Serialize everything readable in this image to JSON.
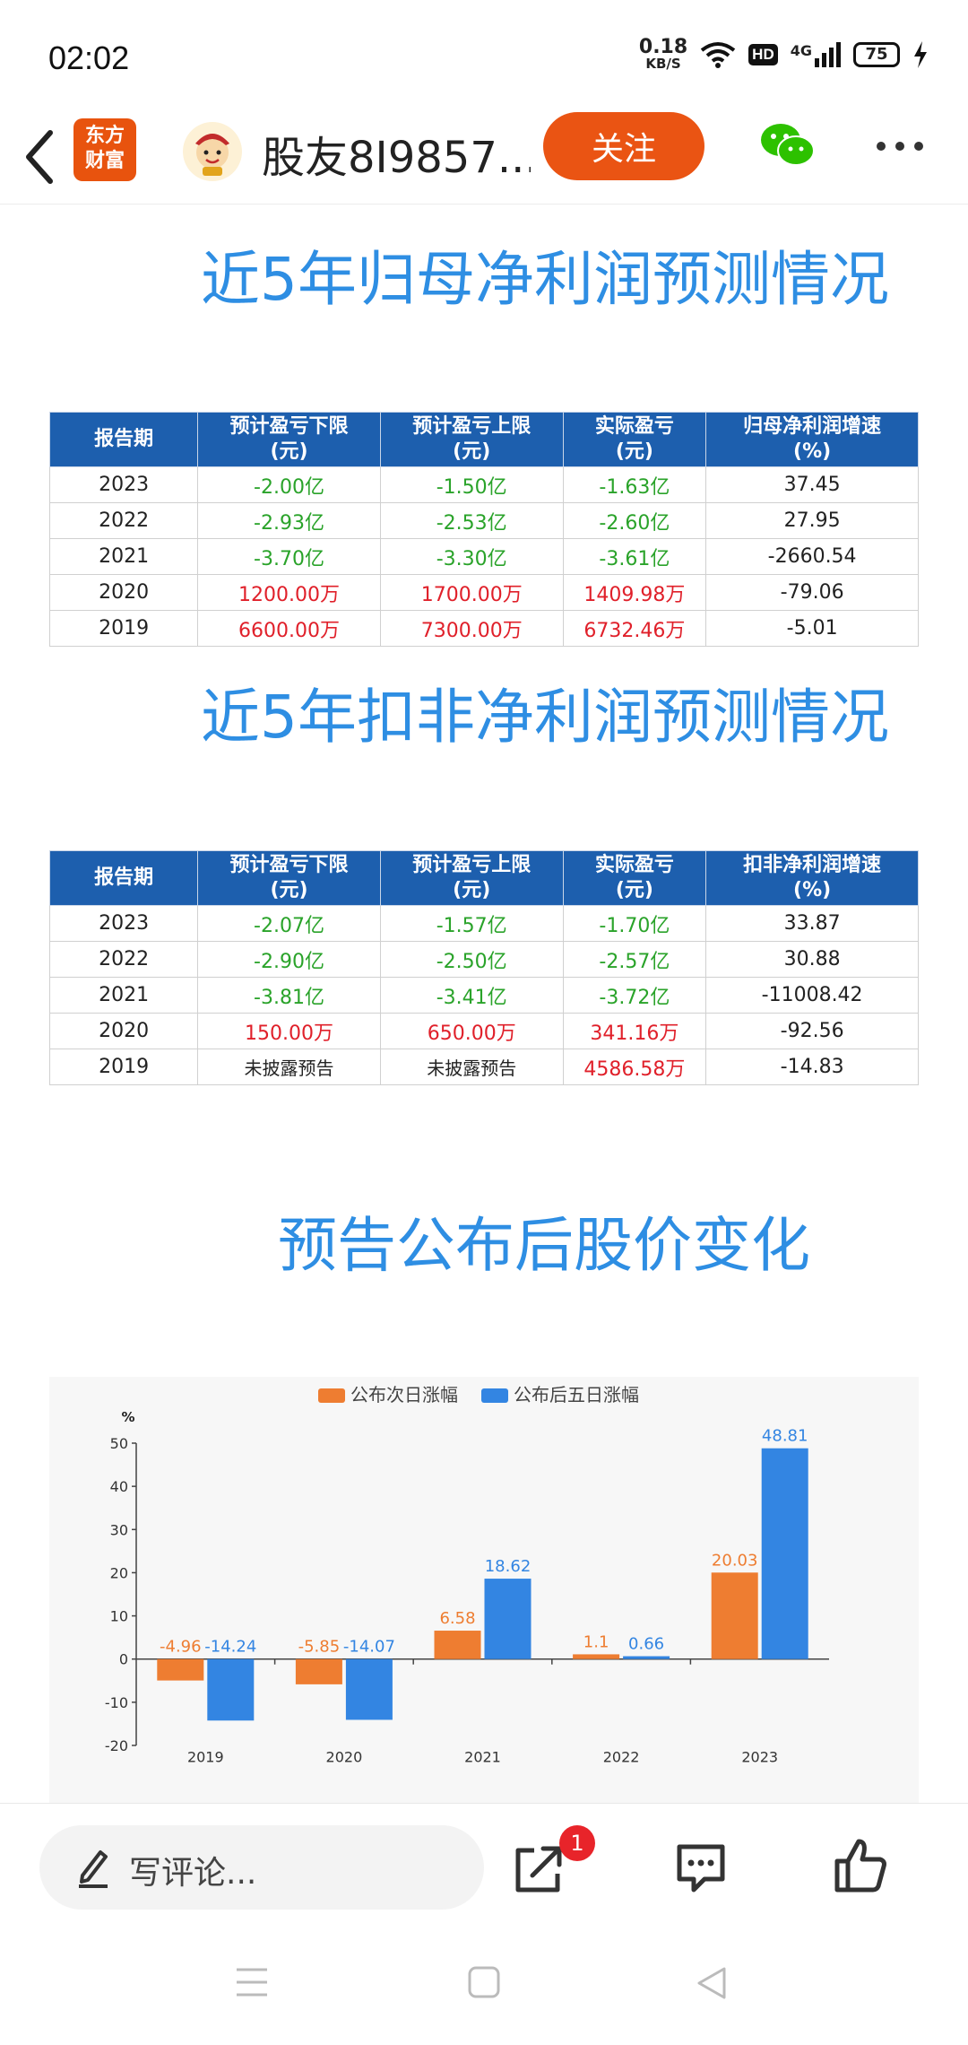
{
  "status_bar": {
    "time": "02:02",
    "net_speed": "0.18",
    "net_unit": "KB/S",
    "hd": "HD",
    "network": "4G",
    "battery": "75"
  },
  "nav": {
    "logo_line1": "东方",
    "logo_line2": "财富",
    "username": "股友8I9857...",
    "follow_label": "关注"
  },
  "section1": {
    "title": "近5年归母净利润预测情况",
    "headers": [
      "报告期",
      "预计盈亏下限\n(元)",
      "预计盈亏上限\n(元)",
      "实际盈亏\n(元)",
      "归母净利润增速\n(%)"
    ],
    "rows": [
      [
        "2023",
        "-2.00亿",
        "-1.50亿",
        "-1.63亿",
        "37.45"
      ],
      [
        "2022",
        "-2.93亿",
        "-2.53亿",
        "-2.60亿",
        "27.95"
      ],
      [
        "2021",
        "-3.70亿",
        "-3.30亿",
        "-3.61亿",
        "-2660.54"
      ],
      [
        "2020",
        "1200.00万",
        "1700.00万",
        "1409.98万",
        "-79.06"
      ],
      [
        "2019",
        "6600.00万",
        "7300.00万",
        "6732.46万",
        "-5.01"
      ]
    ]
  },
  "section2": {
    "title": "近5年扣非净利润预测情况",
    "headers": [
      "报告期",
      "预计盈亏下限\n(元)",
      "预计盈亏上限\n(元)",
      "实际盈亏\n(元)",
      "扣非净利润增速\n(%)"
    ],
    "rows": [
      [
        "2023",
        "-2.07亿",
        "-1.57亿",
        "-1.70亿",
        "33.87"
      ],
      [
        "2022",
        "-2.90亿",
        "-2.50亿",
        "-2.57亿",
        "30.88"
      ],
      [
        "2021",
        "-3.81亿",
        "-3.41亿",
        "-3.72亿",
        "-11008.42"
      ],
      [
        "2020",
        "150.00万",
        "650.00万",
        "341.16万",
        "-92.56"
      ],
      [
        "2019",
        "未披露预告",
        "未披露预告",
        "4586.58万",
        "-14.83"
      ]
    ]
  },
  "section3": {
    "title": "预告公布后股价变化"
  },
  "chart_data": {
    "type": "bar",
    "categories": [
      "2019",
      "2020",
      "2021",
      "2022",
      "2023"
    ],
    "series": [
      {
        "name": "公布次日涨幅",
        "color": "#ee7d31",
        "values": [
          -4.96,
          -5.85,
          6.58,
          1.1,
          20.03
        ],
        "labels": [
          "-4.96",
          "-5.85",
          "6.58",
          "1.1",
          "20.03"
        ]
      },
      {
        "name": "公布后五日涨幅",
        "color": "#3385e2",
        "values": [
          -14.24,
          -14.07,
          18.62,
          0.66,
          48.81
        ],
        "labels": [
          "-14.24",
          "-14.07",
          "18.62",
          "0.66",
          "48.81"
        ]
      }
    ],
    "ylabel": "%",
    "ylim": [
      -20,
      50
    ],
    "yticks": [
      "50",
      "40",
      "30",
      "20",
      "10",
      "0",
      "-10",
      "-20"
    ],
    "legend": "top-center",
    "grid": false
  },
  "bottom": {
    "comment_placeholder": "写评论...",
    "share_badge": "1"
  }
}
